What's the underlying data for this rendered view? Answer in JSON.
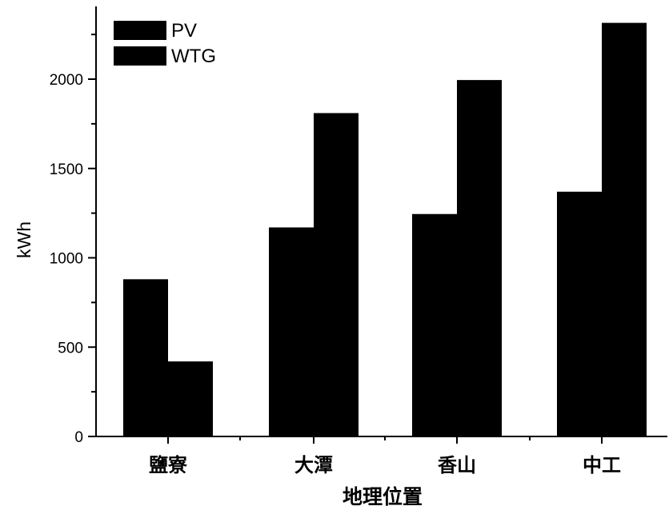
{
  "chart_data": {
    "type": "bar",
    "categories": [
      "鹽寮",
      "大潭",
      "香山",
      "中工"
    ],
    "series": [
      {
        "name": "PV",
        "values": [
          880,
          1170,
          1245,
          1370
        ],
        "color": "#000000"
      },
      {
        "name": "WTG",
        "values": [
          420,
          1810,
          1995,
          2315
        ],
        "color": "#000000"
      }
    ],
    "xlabel": "地理位置",
    "ylabel": "kWh",
    "ylim": [
      0,
      2440
    ],
    "yticks": [
      0,
      500,
      1000,
      1500,
      2000
    ],
    "grid": false,
    "legend": "top-left"
  }
}
